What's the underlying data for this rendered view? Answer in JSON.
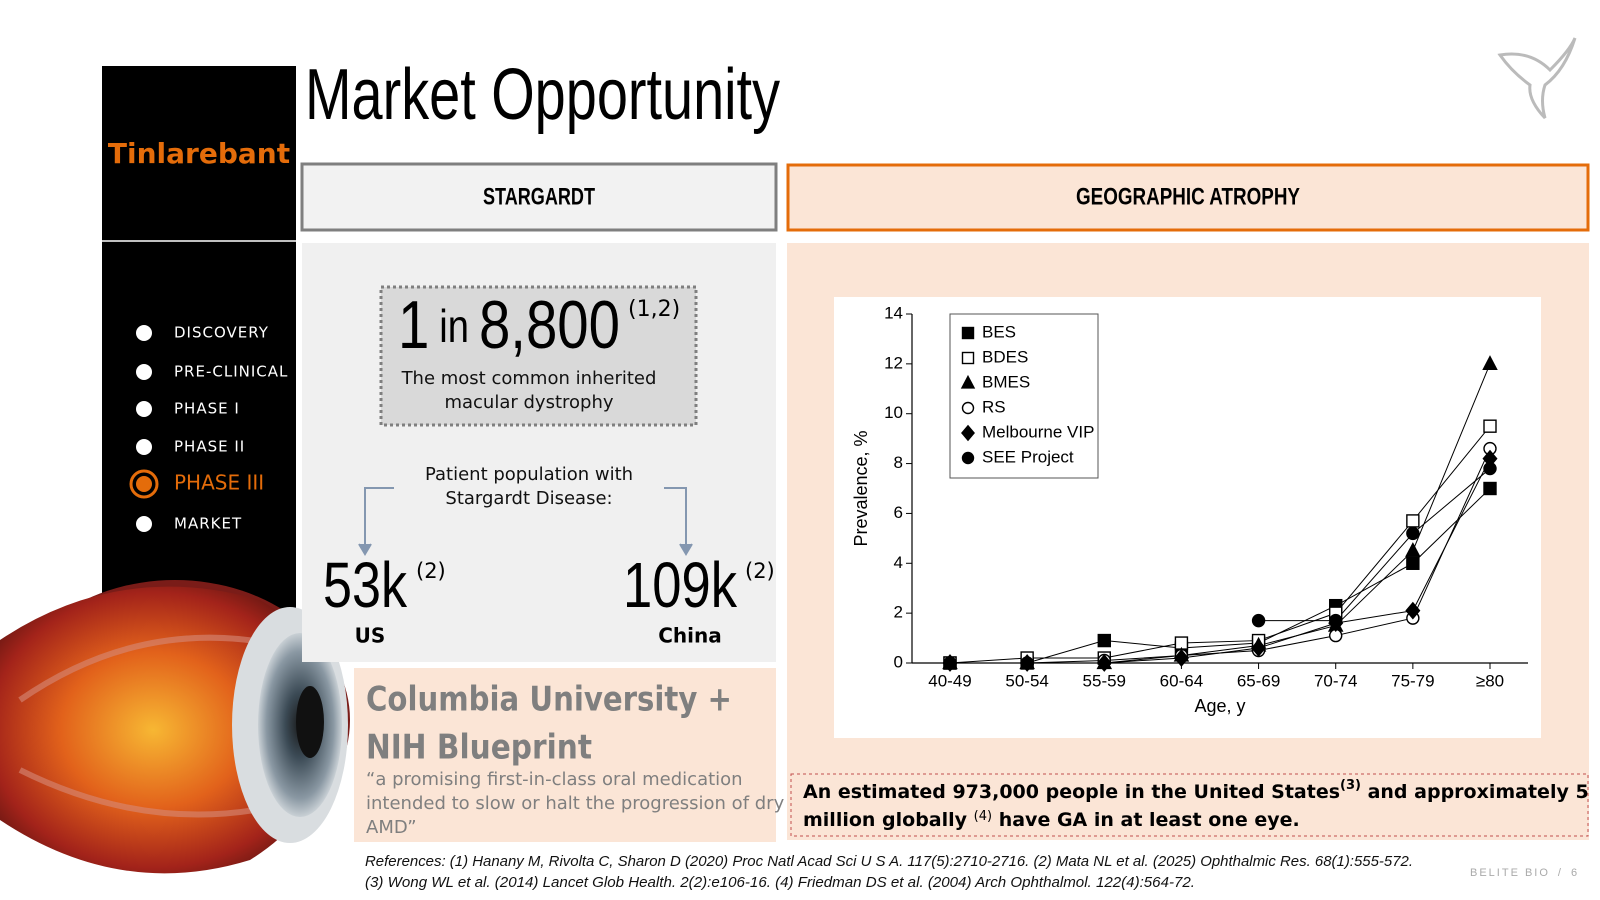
{
  "header": {
    "title": "Market Opportunity"
  },
  "sidebar": {
    "product": "Tinlarebant",
    "phases": [
      "DISCOVERY",
      "PRE-CLINICAL",
      "PHASE I",
      "PHASE II",
      "PHASE III",
      "MARKET"
    ],
    "active_phase": 4
  },
  "stargardt": {
    "heading": "STARGARDT",
    "prevalence": [
      "1",
      "in",
      "8,800"
    ],
    "prevalence_ref": "(1,2)",
    "description": [
      "The most common inherited",
      "macular dystrophy"
    ],
    "population_label": [
      "Patient population with",
      "Stargardt Disease:"
    ],
    "regions": [
      {
        "value": "53k",
        "ref": "(2)",
        "label": "US"
      },
      {
        "value": "109k",
        "ref": "(2)",
        "label": "China"
      }
    ]
  },
  "columbia": {
    "title": [
      "Columbia University +",
      "NIH Blueprint"
    ],
    "quote": [
      "“a promising first-in-class oral medication",
      "intended to slow or halt the progression of dry",
      "AMD”"
    ]
  },
  "geographic_atrophy": {
    "heading": "GEOGRAPHIC ATROPHY",
    "note": [
      [
        "An estimated 973,000 people in the United States",
        "(3)",
        " and approximately 5"
      ],
      [
        "million globally ",
        "(4)",
        " have GA in at least one eye."
      ]
    ]
  },
  "chart_data": {
    "type": "line",
    "xlabel": "Age, y",
    "ylabel": "Prevalence, %",
    "categories": [
      "40-49",
      "50-54",
      "55-59",
      "60-64",
      "65-69",
      "70-74",
      "75-79",
      "≥80"
    ],
    "ylim": [
      0,
      14
    ],
    "yticks": [
      0,
      2,
      4,
      6,
      8,
      10,
      12,
      14
    ],
    "grid": false,
    "legend": "upper left",
    "series": [
      {
        "name": "BES",
        "color": "#000000",
        "marker": "square",
        "values": [
          0,
          0,
          0.9,
          0.6,
          0.8,
          2.3,
          4.0,
          7.0
        ]
      },
      {
        "name": "BDES",
        "color": "#000000",
        "marker": "square-open",
        "values": [
          0,
          0.2,
          0.2,
          0.8,
          0.9,
          2.0,
          5.7,
          9.5
        ]
      },
      {
        "name": "BMES",
        "color": "#000000",
        "marker": "triangle",
        "values": [
          0,
          0,
          0,
          0.3,
          0.7,
          1.5,
          4.5,
          12.0
        ]
      },
      {
        "name": "RS",
        "color": "#000000",
        "marker": "circle-open",
        "values": [
          0,
          0,
          0.1,
          0.3,
          0.5,
          1.1,
          1.8,
          8.6
        ]
      },
      {
        "name": "Melbourne VIP",
        "color": "#000000",
        "marker": "diamond",
        "values": [
          0,
          0,
          0,
          0.2,
          0.6,
          1.6,
          2.1,
          8.2
        ]
      },
      {
        "name": "SEE Project",
        "color": "#000000",
        "marker": "circle",
        "values": [
          null,
          null,
          null,
          null,
          1.7,
          1.7,
          5.2,
          7.8
        ]
      }
    ]
  },
  "references": [
    "References: (1) Hanany M, Rivolta C, Sharon D (2020) Proc Natl Acad Sci U S A. 117(5):2710-2716. (2) Mata NL et al. (2025) Ophthalmic Res. 68(1):555-572.",
    "(3) Wong WL et al. (2014) Lancet Glob Health. 2(2):e106-16. (4) Friedman DS et al. (2004) Arch Ophthalmol. 122(4):564-72."
  ],
  "footer": {
    "brand": "BELITE BIO",
    "separator": "/",
    "page": "6"
  }
}
